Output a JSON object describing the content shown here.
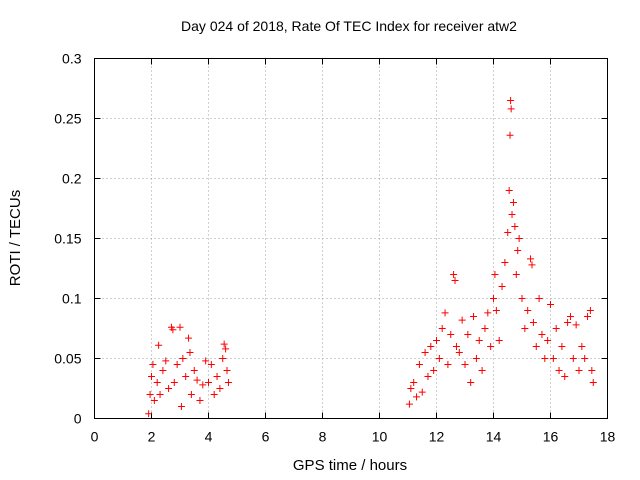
{
  "chart_data": {
    "type": "scatter",
    "title": "Day 024 of 2018, Rate Of TEC Index for receiver atw2",
    "xlabel": "GPS time / hours",
    "ylabel": "ROTI / TECUs",
    "xlim": [
      0,
      18
    ],
    "ylim": [
      0,
      0.3
    ],
    "x_ticks": [
      "0",
      "2",
      "4",
      "6",
      "8",
      "10",
      "12",
      "14",
      "16",
      "18"
    ],
    "y_ticks": [
      "0",
      "0.05",
      "0.1",
      "0.15",
      "0.2",
      "0.25",
      "0.3"
    ],
    "grid": true,
    "marker": "+",
    "marker_color": "#ff0000",
    "series": [
      {
        "name": "ROTI",
        "points": [
          [
            1.9,
            0.004
          ],
          [
            1.95,
            0.02
          ],
          [
            2.0,
            0.035
          ],
          [
            2.05,
            0.045
          ],
          [
            2.1,
            0.015
          ],
          [
            2.2,
            0.03
          ],
          [
            2.25,
            0.061
          ],
          [
            2.3,
            0.02
          ],
          [
            2.4,
            0.04
          ],
          [
            2.5,
            0.048
          ],
          [
            2.6,
            0.025
          ],
          [
            2.7,
            0.076
          ],
          [
            2.75,
            0.074
          ],
          [
            2.8,
            0.03
          ],
          [
            2.9,
            0.045
          ],
          [
            3.0,
            0.076
          ],
          [
            3.05,
            0.01
          ],
          [
            3.1,
            0.05
          ],
          [
            3.2,
            0.035
          ],
          [
            3.3,
            0.067
          ],
          [
            3.35,
            0.055
          ],
          [
            3.4,
            0.02
          ],
          [
            3.5,
            0.04
          ],
          [
            3.6,
            0.032
          ],
          [
            3.7,
            0.015
          ],
          [
            3.8,
            0.028
          ],
          [
            3.9,
            0.048
          ],
          [
            4.0,
            0.03
          ],
          [
            4.1,
            0.045
          ],
          [
            4.2,
            0.02
          ],
          [
            4.3,
            0.035
          ],
          [
            4.4,
            0.025
          ],
          [
            4.5,
            0.05
          ],
          [
            4.55,
            0.062
          ],
          [
            4.6,
            0.058
          ],
          [
            4.65,
            0.04
          ],
          [
            4.7,
            0.03
          ],
          [
            11.05,
            0.012
          ],
          [
            11.1,
            0.025
          ],
          [
            11.2,
            0.03
          ],
          [
            11.3,
            0.018
          ],
          [
            11.4,
            0.045
          ],
          [
            11.5,
            0.022
          ],
          [
            11.6,
            0.055
          ],
          [
            11.7,
            0.035
          ],
          [
            11.8,
            0.06
          ],
          [
            11.9,
            0.04
          ],
          [
            12.0,
            0.065
          ],
          [
            12.1,
            0.05
          ],
          [
            12.2,
            0.075
          ],
          [
            12.3,
            0.088
          ],
          [
            12.4,
            0.045
          ],
          [
            12.5,
            0.07
          ],
          [
            12.6,
            0.12
          ],
          [
            12.65,
            0.115
          ],
          [
            12.7,
            0.06
          ],
          [
            12.8,
            0.055
          ],
          [
            12.9,
            0.082
          ],
          [
            13.0,
            0.045
          ],
          [
            13.1,
            0.07
          ],
          [
            13.2,
            0.03
          ],
          [
            13.3,
            0.085
          ],
          [
            13.4,
            0.05
          ],
          [
            13.5,
            0.065
          ],
          [
            13.6,
            0.04
          ],
          [
            13.7,
            0.075
          ],
          [
            13.8,
            0.088
          ],
          [
            13.9,
            0.06
          ],
          [
            14.0,
            0.1
          ],
          [
            14.05,
            0.12
          ],
          [
            14.1,
            0.09
          ],
          [
            14.2,
            0.065
          ],
          [
            14.3,
            0.11
          ],
          [
            14.4,
            0.13
          ],
          [
            14.5,
            0.155
          ],
          [
            14.55,
            0.19
          ],
          [
            14.6,
            0.265
          ],
          [
            14.62,
            0.258
          ],
          [
            14.58,
            0.236
          ],
          [
            14.65,
            0.17
          ],
          [
            14.7,
            0.18
          ],
          [
            14.75,
            0.16
          ],
          [
            14.8,
            0.12
          ],
          [
            14.85,
            0.14
          ],
          [
            14.9,
            0.15
          ],
          [
            15.0,
            0.1
          ],
          [
            15.1,
            0.075
          ],
          [
            15.2,
            0.09
          ],
          [
            15.3,
            0.133
          ],
          [
            15.35,
            0.128
          ],
          [
            15.4,
            0.08
          ],
          [
            15.5,
            0.06
          ],
          [
            15.6,
            0.1
          ],
          [
            15.7,
            0.07
          ],
          [
            15.8,
            0.05
          ],
          [
            15.9,
            0.065
          ],
          [
            16.0,
            0.095
          ],
          [
            16.1,
            0.05
          ],
          [
            16.2,
            0.075
          ],
          [
            16.3,
            0.04
          ],
          [
            16.4,
            0.06
          ],
          [
            16.5,
            0.035
          ],
          [
            16.6,
            0.08
          ],
          [
            16.7,
            0.085
          ],
          [
            16.8,
            0.05
          ],
          [
            16.9,
            0.078
          ],
          [
            17.0,
            0.04
          ],
          [
            17.1,
            0.06
          ],
          [
            17.2,
            0.05
          ],
          [
            17.3,
            0.085
          ],
          [
            17.4,
            0.09
          ],
          [
            17.45,
            0.04
          ],
          [
            17.5,
            0.03
          ]
        ]
      }
    ]
  }
}
